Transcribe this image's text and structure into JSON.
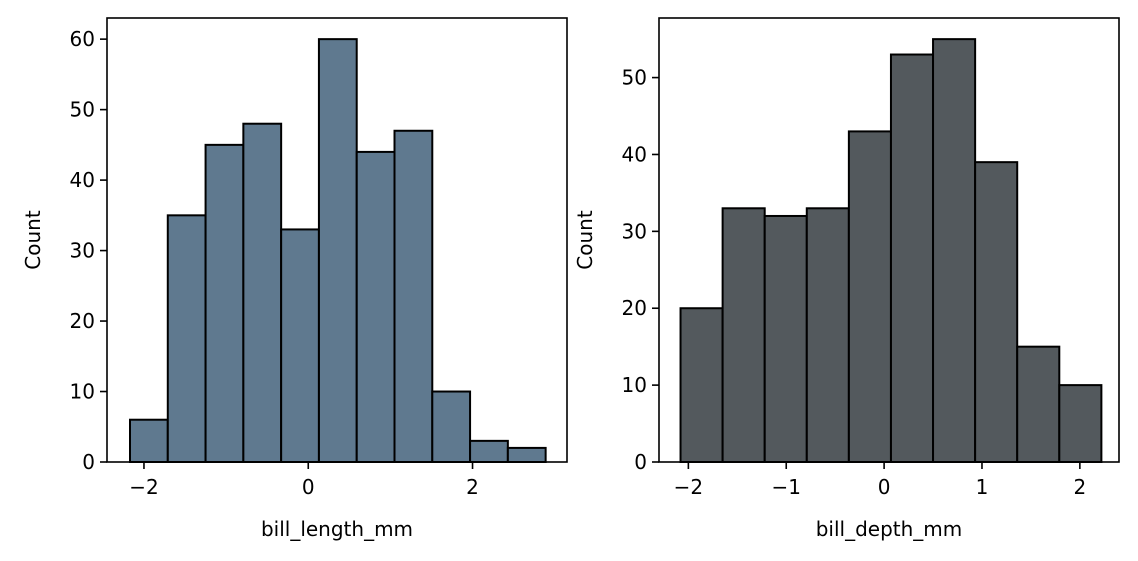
{
  "chart_data": [
    {
      "type": "bar",
      "subtype": "histogram",
      "xlabel": "bill_length_mm",
      "ylabel": "Count",
      "color": "#5f798f",
      "edgecolor": "#000000",
      "xlim": [
        -2.45,
        3.15
      ],
      "ylim": [
        0,
        63
      ],
      "xticks": [
        -2,
        0,
        2
      ],
      "xtick_labels": [
        "−2",
        "0",
        "2"
      ],
      "yticks": [
        0,
        10,
        20,
        30,
        40,
        50,
        60
      ],
      "ytick_labels": [
        "0",
        "10",
        "20",
        "30",
        "40",
        "50",
        "60"
      ],
      "bin_start": -2.17,
      "bin_width": 0.46,
      "values": [
        6,
        35,
        45,
        48,
        33,
        60,
        44,
        47,
        10,
        3,
        2
      ],
      "grid": false
    },
    {
      "type": "bar",
      "subtype": "histogram",
      "xlabel": "bill_depth_mm",
      "ylabel": "Count",
      "color": "#53595d",
      "edgecolor": "#000000",
      "xlim": [
        -2.3,
        2.4
      ],
      "ylim": [
        0,
        57.75
      ],
      "xticks": [
        -2,
        -1,
        0,
        1,
        2
      ],
      "xtick_labels": [
        "−2",
        "−1",
        "0",
        "1",
        "2"
      ],
      "yticks": [
        0,
        10,
        20,
        30,
        40,
        50
      ],
      "ytick_labels": [
        "0",
        "10",
        "20",
        "30",
        "40",
        "50"
      ],
      "bin_start": -2.08,
      "bin_width": 0.43,
      "values": [
        20,
        33,
        32,
        33,
        43,
        53,
        55,
        39,
        15,
        10
      ],
      "grid": false
    }
  ]
}
